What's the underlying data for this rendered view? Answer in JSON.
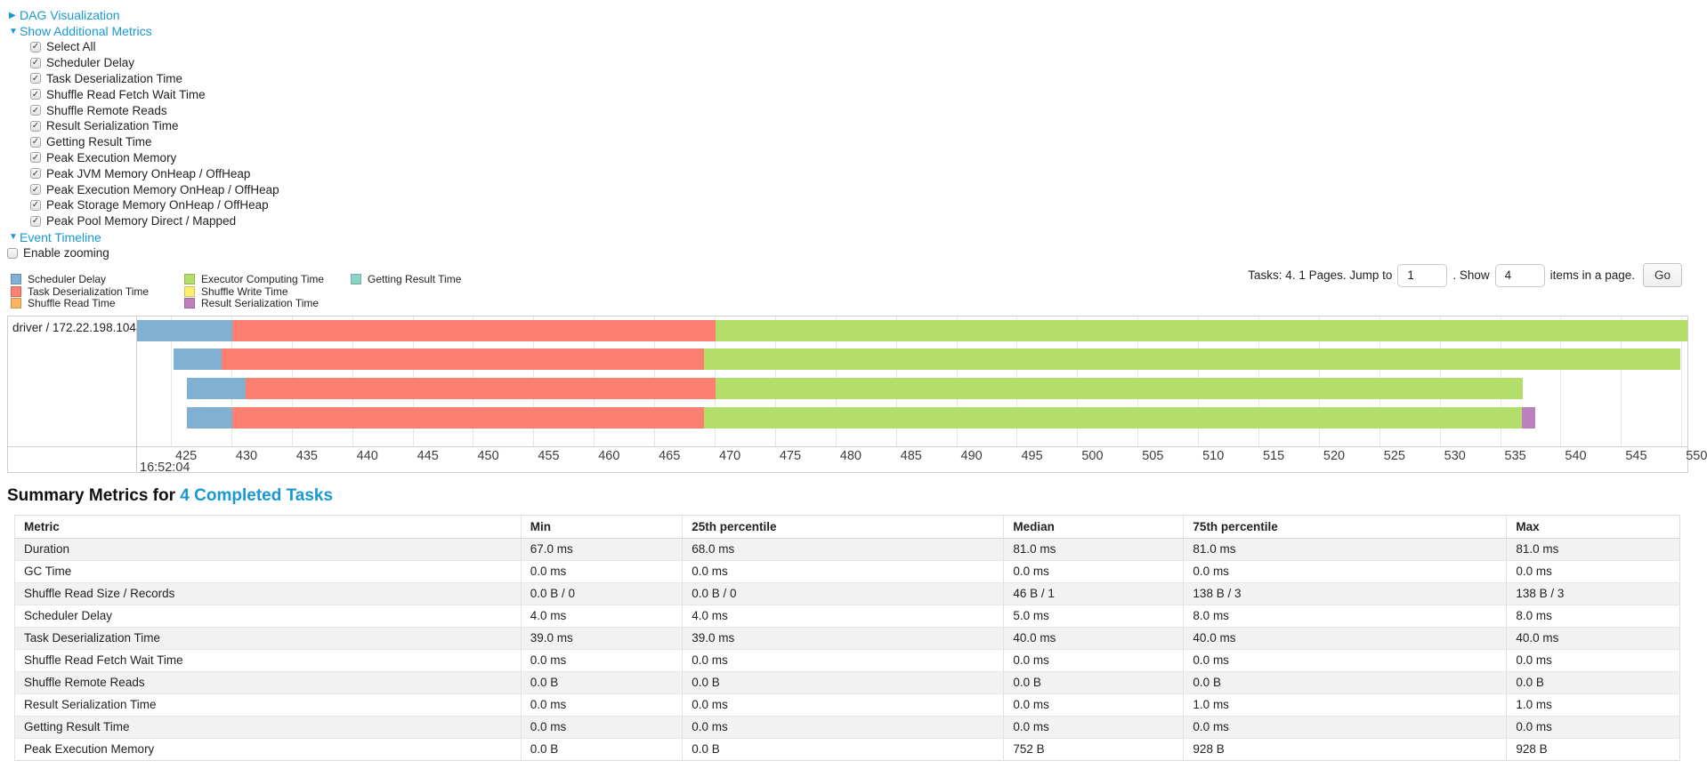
{
  "accent": {
    "link_color": "#1899d1"
  },
  "dag_section": {
    "label": "DAG Visualization",
    "collapsed": true
  },
  "additional_metrics": {
    "label": "Show Additional Metrics",
    "items": [
      "Select All",
      "Scheduler Delay",
      "Task Deserialization Time",
      "Shuffle Read Fetch Wait Time",
      "Shuffle Remote Reads",
      "Result Serialization Time",
      "Getting Result Time",
      "Peak Execution Memory",
      "Peak JVM Memory OnHeap / OffHeap",
      "Peak Execution Memory OnHeap / OffHeap",
      "Peak Storage Memory OnHeap / OffHeap",
      "Peak Pool Memory Direct / Mapped"
    ],
    "all_checked": true
  },
  "event_timeline": {
    "label": "Event Timeline",
    "enable_zooming_label": "Enable zooming",
    "enable_zooming_checked": false
  },
  "legend": {
    "columns": [
      [
        {
          "label": "Scheduler Delay",
          "color": "#80B1D3"
        },
        {
          "label": "Task Deserialization Time",
          "color": "#FB8072"
        },
        {
          "label": "Shuffle Read Time",
          "color": "#FDB462"
        }
      ],
      [
        {
          "label": "Executor Computing Time",
          "color": "#B3DE69"
        },
        {
          "label": "Shuffle Write Time",
          "color": "#FFED6F"
        },
        {
          "label": "Result Serialization Time",
          "color": "#BC80BD"
        }
      ],
      [
        {
          "label": "Getting Result Time",
          "color": "#8DD3C7"
        }
      ]
    ]
  },
  "pagination": {
    "prefix": "Tasks: 4. 1 Pages. Jump to",
    "jump_value": "1",
    "mid": ". Show",
    "show_value": "4",
    "suffix": "items in a page.",
    "go_label": "Go"
  },
  "chart_data": {
    "type": "timeline",
    "group_label": "driver / 172.22.198.104",
    "x_axis": {
      "domain": [
        422.2,
        550.5
      ],
      "ticks": [
        425,
        430,
        435,
        440,
        445,
        450,
        455,
        460,
        465,
        470,
        475,
        480,
        485,
        490,
        495,
        500,
        505,
        510,
        515,
        520,
        525,
        530,
        535,
        540,
        545,
        550
      ],
      "start_time_label": "16:52:04"
    },
    "tasks": [
      {
        "segments": [
          {
            "name": "Scheduler Delay",
            "color": "#80B1D3",
            "start": 422.2,
            "end": 430.1
          },
          {
            "name": "Task Deserialization Time",
            "color": "#FB8072",
            "start": 430.1,
            "end": 470.1
          },
          {
            "name": "Executor Computing Time",
            "color": "#B3DE69",
            "start": 470.1,
            "end": 550.5
          }
        ]
      },
      {
        "segments": [
          {
            "name": "Scheduler Delay",
            "color": "#80B1D3",
            "start": 425.2,
            "end": 429.2
          },
          {
            "name": "Task Deserialization Time",
            "color": "#FB8072",
            "start": 429.2,
            "end": 469.1
          },
          {
            "name": "Executor Computing Time",
            "color": "#B3DE69",
            "start": 469.1,
            "end": 549.9
          }
        ]
      },
      {
        "segments": [
          {
            "name": "Scheduler Delay",
            "color": "#80B1D3",
            "start": 426.3,
            "end": 431.2
          },
          {
            "name": "Task Deserialization Time",
            "color": "#FB8072",
            "start": 431.2,
            "end": 470.1
          },
          {
            "name": "Executor Computing Time",
            "color": "#B3DE69",
            "start": 470.1,
            "end": 536.9
          }
        ]
      },
      {
        "segments": [
          {
            "name": "Scheduler Delay",
            "color": "#80B1D3",
            "start": 426.3,
            "end": 430.1
          },
          {
            "name": "Task Deserialization Time",
            "color": "#FB8072",
            "start": 430.1,
            "end": 469.1
          },
          {
            "name": "Executor Computing Time",
            "color": "#B3DE69",
            "start": 469.1,
            "end": 536.8
          },
          {
            "name": "Result Serialization Time",
            "color": "#BC80BD",
            "start": 536.8,
            "end": 537.9
          }
        ]
      }
    ]
  },
  "summary": {
    "title_prefix": "Summary Metrics for ",
    "title_link": "4 Completed Tasks",
    "table": {
      "headers": [
        "Metric",
        "Min",
        "25th percentile",
        "Median",
        "75th percentile",
        "Max"
      ],
      "col_widths_pct": [
        30.4,
        9.7,
        19.3,
        10.8,
        19.4,
        10.4
      ],
      "rows": [
        [
          "Duration",
          "67.0 ms",
          "68.0 ms",
          "81.0 ms",
          "81.0 ms",
          "81.0 ms"
        ],
        [
          "GC Time",
          "0.0 ms",
          "0.0 ms",
          "0.0 ms",
          "0.0 ms",
          "0.0 ms"
        ],
        [
          "Shuffle Read Size / Records",
          "0.0 B / 0",
          "0.0 B / 0",
          "46 B / 1",
          "138 B / 3",
          "138 B / 3"
        ],
        [
          "Scheduler Delay",
          "4.0 ms",
          "4.0 ms",
          "5.0 ms",
          "8.0 ms",
          "8.0 ms"
        ],
        [
          "Task Deserialization Time",
          "39.0 ms",
          "39.0 ms",
          "40.0 ms",
          "40.0 ms",
          "40.0 ms"
        ],
        [
          "Shuffle Read Fetch Wait Time",
          "0.0 ms",
          "0.0 ms",
          "0.0 ms",
          "0.0 ms",
          "0.0 ms"
        ],
        [
          "Shuffle Remote Reads",
          "0.0 B",
          "0.0 B",
          "0.0 B",
          "0.0 B",
          "0.0 B"
        ],
        [
          "Result Serialization Time",
          "0.0 ms",
          "0.0 ms",
          "0.0 ms",
          "1.0 ms",
          "1.0 ms"
        ],
        [
          "Getting Result Time",
          "0.0 ms",
          "0.0 ms",
          "0.0 ms",
          "0.0 ms",
          "0.0 ms"
        ],
        [
          "Peak Execution Memory",
          "0.0 B",
          "0.0 B",
          "752 B",
          "928 B",
          "928 B"
        ]
      ]
    }
  }
}
